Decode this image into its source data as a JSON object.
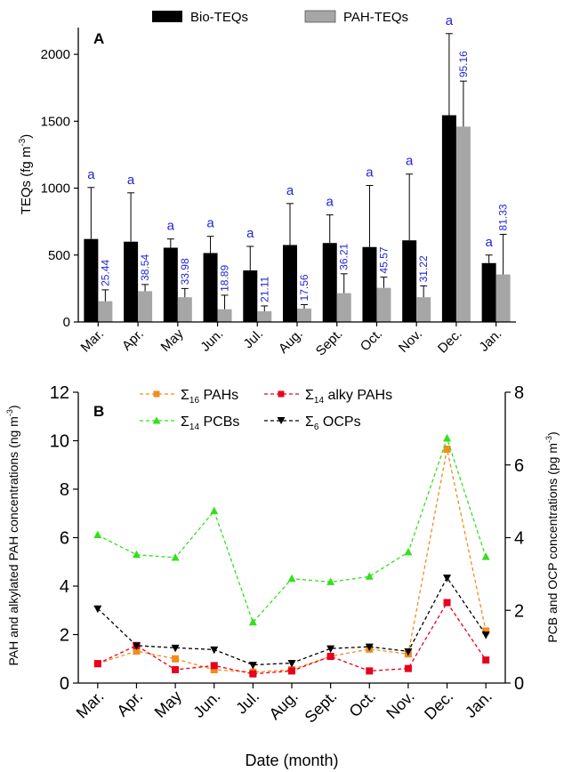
{
  "chart_data": [
    {
      "type": "bar",
      "panel_label": "A",
      "categories": [
        "Mar.",
        "Apr.",
        "May",
        "Jun.",
        "Jul.",
        "Aug.",
        "Sept.",
        "Oct.",
        "Nov.",
        "Dec.",
        "Jan."
      ],
      "ylabel": "TEQs (fg m",
      "ylabel_sup": "-3",
      "ylabel_close": ")",
      "ylim": [
        0,
        2200
      ],
      "yticks": [
        0,
        500,
        1000,
        1500,
        2000
      ],
      "legend_position": "top",
      "series": [
        {
          "name": "Bio-TEQs",
          "color": "#000000",
          "values": [
            620,
            600,
            555,
            515,
            385,
            575,
            590,
            560,
            610,
            1545,
            440
          ],
          "errors": [
            385,
            365,
            65,
            125,
            180,
            310,
            210,
            460,
            495,
            610,
            60
          ],
          "annotations": [
            "a",
            "a",
            "a",
            "a",
            "a",
            "a",
            "a",
            "a",
            "a",
            "a",
            "a"
          ]
        },
        {
          "name": "PAH-TEQs",
          "color": "#a6a6a6",
          "values": [
            155,
            230,
            185,
            95,
            80,
            100,
            215,
            255,
            185,
            1460,
            355
          ],
          "errors": [
            85,
            50,
            65,
            105,
            40,
            30,
            145,
            80,
            85,
            340,
            300
          ],
          "annotations": [
            "25.44",
            "38.54",
            "33.98",
            "18.89",
            "21.11",
            "17.56",
            "36.21",
            "45.57",
            "31.22",
            "95.16",
            "81.33"
          ]
        }
      ]
    },
    {
      "type": "line",
      "panel_label": "B",
      "categories": [
        "Mar.",
        "Apr.",
        "May",
        "Jun.",
        "Jul.",
        "Aug.",
        "Sept.",
        "Oct.",
        "Nov.",
        "Dec.",
        "Jan."
      ],
      "xlabel": "Date (month)",
      "ylabel_left": "PAH and alkylated PAH concentrations (ng m",
      "ylabel_left_sup": "-3",
      "ylabel_right": "PCB and OCP concentrations (pg m",
      "ylabel_right_sup": "-3",
      "ylabel_close": ")",
      "ylim_left": [
        0,
        12
      ],
      "yticks_left": [
        0,
        2,
        4,
        6,
        8,
        10,
        12
      ],
      "ylim_right": [
        0,
        8
      ],
      "yticks_right": [
        0,
        2,
        4,
        6,
        8
      ],
      "legend_position": "top",
      "series": [
        {
          "name_prefix": "Σ",
          "name_sub": "16",
          "name_rest": " PAHs",
          "axis": "left",
          "color": "#f28c1c",
          "marker": "square",
          "values": [
            0.8,
            1.32,
            1.0,
            0.55,
            0.45,
            0.55,
            1.1,
            1.4,
            1.2,
            9.65,
            2.15
          ]
        },
        {
          "name_prefix": "Σ",
          "name_sub": "14",
          "name_rest": " alky PAHs",
          "axis": "left",
          "color": "#e8001c",
          "marker": "square",
          "values": [
            0.8,
            1.55,
            0.55,
            0.72,
            0.38,
            0.5,
            1.1,
            0.5,
            0.6,
            3.32,
            0.95
          ]
        },
        {
          "name_prefix": "Σ",
          "name_sub": "14",
          "name_rest": " PCBs",
          "axis": "right",
          "color": "#33e01a",
          "marker": "triangle-up",
          "values": [
            4.07,
            3.53,
            3.45,
            4.73,
            1.67,
            2.87,
            2.78,
            2.93,
            3.6,
            6.73,
            3.47
          ]
        },
        {
          "name_prefix": "Σ",
          "name_sub": "6",
          "name_rest": " OCPs",
          "axis": "right",
          "color": "#000000",
          "marker": "triangle-down",
          "values": [
            2.05,
            1.03,
            0.97,
            0.92,
            0.5,
            0.55,
            0.95,
            1.0,
            0.87,
            2.9,
            1.33
          ]
        }
      ]
    }
  ]
}
